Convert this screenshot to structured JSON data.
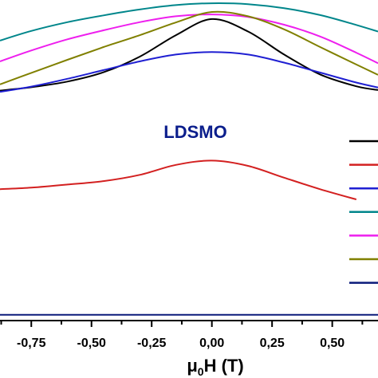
{
  "chart_data": {
    "type": "line",
    "xlabel": "μ0H (T)",
    "xlabel_parts": {
      "main": "μ",
      "sub": "0",
      "rest": "H (T)"
    },
    "ylabel": "",
    "xlim": [
      -0.88,
      0.69
    ],
    "ylim": [
      0,
      100
    ],
    "x_ticks": [
      -0.75,
      -0.5,
      -0.25,
      0.0,
      0.25,
      0.5
    ],
    "x_tick_labels": [
      "-0,75",
      "-0,50",
      "-0,25",
      "0,00",
      "0,25",
      "0,50"
    ],
    "grid": false,
    "legend_position": "right",
    "annotation": {
      "text": "LDSMO",
      "color": "#0b1e8c"
    },
    "series": [
      {
        "color": "#00868b",
        "x": [
          -0.88,
          -0.75,
          -0.6,
          -0.45,
          -0.3,
          -0.15,
          0.0,
          0.15,
          0.3,
          0.45,
          0.6,
          0.69
        ],
        "y": [
          88.5,
          91.6,
          94.4,
          96.6,
          98.5,
          99.9,
          100.5,
          100.2,
          98.9,
          96.7,
          93.5,
          91.4
        ]
      },
      {
        "color": "#ee1fee",
        "x": [
          -0.88,
          -0.75,
          -0.6,
          -0.45,
          -0.3,
          -0.15,
          0.0,
          0.15,
          0.3,
          0.45,
          0.6,
          0.69
        ],
        "y": [
          81.8,
          85.3,
          88.9,
          91.8,
          94.4,
          96.3,
          96.9,
          96.1,
          93.6,
          89.8,
          84.6,
          81.2
        ]
      },
      {
        "color": "#000000",
        "x": [
          -0.88,
          -0.75,
          -0.6,
          -0.45,
          -0.3,
          -0.15,
          0.0,
          0.15,
          0.3,
          0.45,
          0.6,
          0.69
        ],
        "y": [
          72.4,
          73.5,
          75.3,
          78.3,
          83.3,
          90.2,
          95.4,
          91.4,
          84.0,
          77.6,
          73.8,
          72.6
        ]
      },
      {
        "color": "#808000",
        "x": [
          -0.88,
          -0.75,
          -0.6,
          -0.45,
          -0.3,
          -0.15,
          0.0,
          0.15,
          0.3,
          0.45,
          0.6,
          0.69
        ],
        "y": [
          74.4,
          78.1,
          82.3,
          86.4,
          90.2,
          94.3,
          97.7,
          96.3,
          92.1,
          86.4,
          80.8,
          77.5
        ]
      },
      {
        "color": "#1f1fd2",
        "x": [
          -0.88,
          -0.75,
          -0.6,
          -0.45,
          -0.3,
          -0.15,
          0.0,
          0.15,
          0.3,
          0.45,
          0.6,
          0.69
        ],
        "y": [
          72.0,
          73.7,
          76.2,
          79.0,
          81.8,
          84.0,
          84.8,
          84.0,
          81.4,
          78.2,
          75.0,
          73.4
        ]
      },
      {
        "color": "#d32020",
        "x": [
          -0.88,
          -0.75,
          -0.6,
          -0.45,
          -0.3,
          -0.15,
          0.0,
          0.15,
          0.3,
          0.45,
          0.6
        ],
        "y": [
          40.7,
          41.2,
          42.2,
          43.3,
          45.3,
          48.5,
          49.9,
          48.2,
          44.4,
          40.7,
          37.4
        ]
      },
      {
        "color": "#0a1a7a",
        "x": [
          -0.88,
          -0.6,
          -0.3,
          0.0,
          0.3,
          0.6,
          0.69
        ],
        "y": [
          0.3,
          0.3,
          0.3,
          0.3,
          0.3,
          0.3,
          0.3
        ]
      }
    ],
    "legend": [
      {
        "color": "#000000"
      },
      {
        "color": "#d32020"
      },
      {
        "color": "#1f1fd2"
      },
      {
        "color": "#00868b"
      },
      {
        "color": "#ee1fee"
      },
      {
        "color": "#808000"
      },
      {
        "color": "#0a1a7a"
      }
    ]
  }
}
